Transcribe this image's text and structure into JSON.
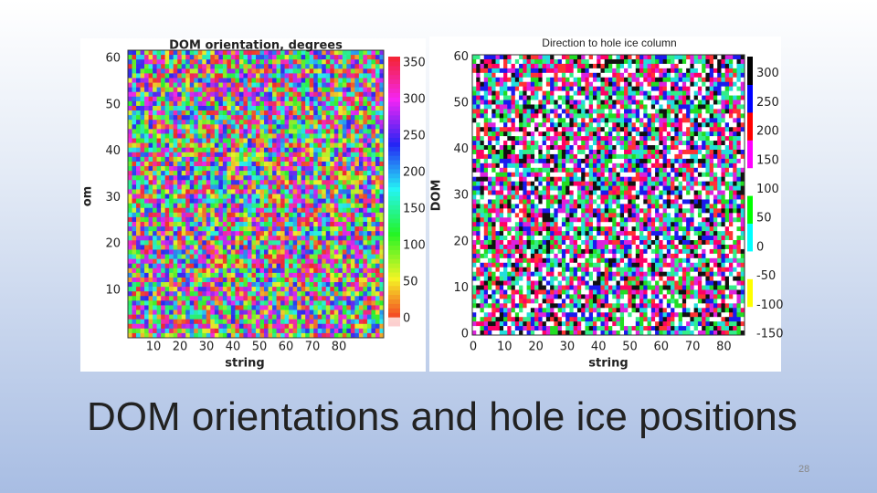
{
  "slide": {
    "title": "DOM orientations and hole ice positions",
    "page_number": "28"
  },
  "left_plot": {
    "title": "DOM orientation, degrees",
    "y_label": "om",
    "x_label": "string",
    "y_ticks": [
      "10",
      "20",
      "30",
      "40",
      "50",
      "60"
    ],
    "x_ticks": [
      "10",
      "20",
      "30",
      "40",
      "50",
      "60",
      "70",
      "80"
    ],
    "colorbar_ticks": [
      "0",
      "50",
      "100",
      "150",
      "200",
      "250",
      "300",
      "350"
    ]
  },
  "right_plot": {
    "title": "Direction to hole ice column",
    "y_label": "DOM",
    "x_label": "string",
    "y_ticks": [
      "0",
      "10",
      "20",
      "30",
      "40",
      "50",
      "60"
    ],
    "x_ticks": [
      "0",
      "10",
      "20",
      "30",
      "40",
      "50",
      "60",
      "70",
      "80"
    ],
    "colorbar_ticks": [
      "-150",
      "-100",
      "-50",
      "0",
      "50",
      "100",
      "150",
      "200",
      "250",
      "300"
    ]
  }
}
